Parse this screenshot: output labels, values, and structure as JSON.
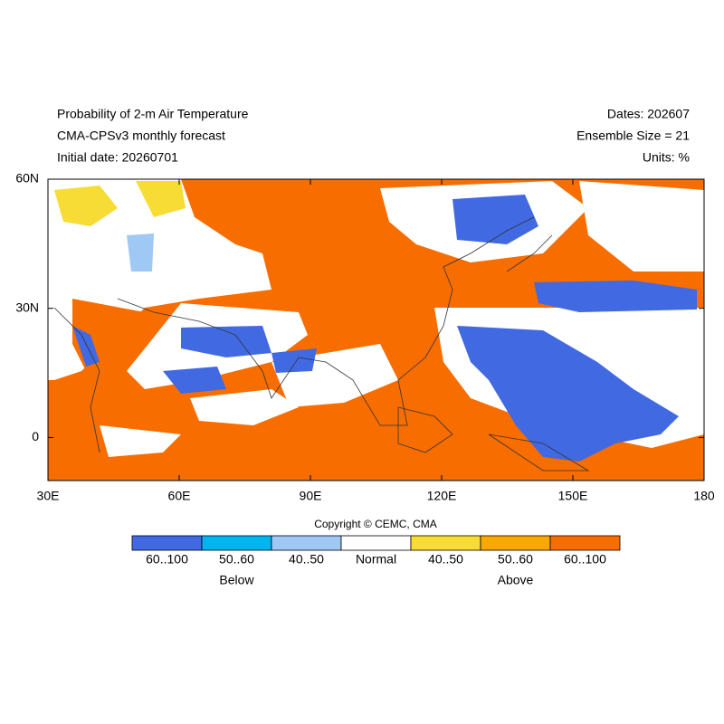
{
  "header": {
    "title_lines": [
      "Probability of 2-m Air Temperature",
      "CMA-CPSv3 monthly forecast",
      "Initial date: 20260701"
    ],
    "info_lines": [
      "Dates: 202607",
      "Ensemble Size = 21",
      "Units: %"
    ]
  },
  "map": {
    "lonlim": [
      30,
      180
    ],
    "latlim": [
      -10,
      60
    ],
    "lon_ticks": [
      {
        "value": 30,
        "label": "30E"
      },
      {
        "value": 60,
        "label": "60E"
      },
      {
        "value": 90,
        "label": "90E"
      },
      {
        "value": 120,
        "label": "120E"
      },
      {
        "value": 150,
        "label": "150E"
      },
      {
        "value": 180,
        "label": "180"
      }
    ],
    "lat_ticks": [
      {
        "value": 60,
        "label": "60N"
      },
      {
        "value": 30,
        "label": "30N"
      },
      {
        "value": 0,
        "label": "0"
      }
    ]
  },
  "copyright": "Copyright © CEMC, CMA",
  "legend": {
    "items": [
      {
        "label": "60..100",
        "color": "#4169e1"
      },
      {
        "label": "50..60",
        "color": "#00b4f0"
      },
      {
        "label": "40..50",
        "color": "#a0c8f5"
      },
      {
        "label": "Normal",
        "color": "#ffffff"
      },
      {
        "label": "40..50",
        "color": "#f8dc36"
      },
      {
        "label": "50..60",
        "color": "#f8a800"
      },
      {
        "label": "60..100",
        "color": "#f76d00"
      }
    ],
    "groups": [
      "Below",
      "Above"
    ]
  }
}
